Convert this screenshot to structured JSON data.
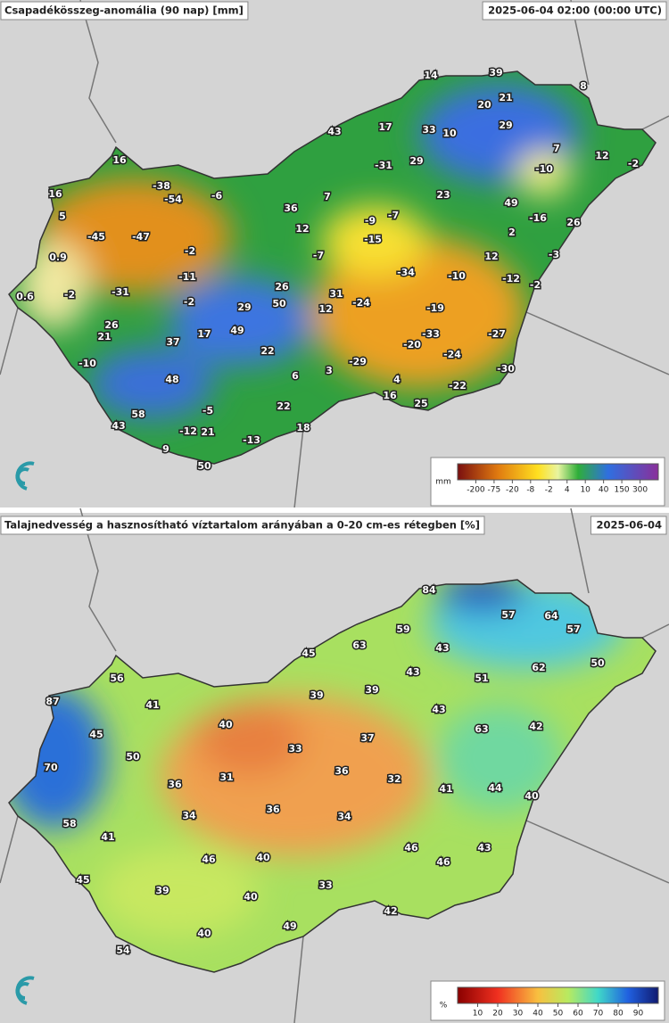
{
  "panels": [
    {
      "title": "Csapadékösszeg-anomália (90 nap) [mm]",
      "date": "2025-06-04 02:00 (00:00 UTC)",
      "values": [
        14,
        39,
        8,
        21,
        20,
        17,
        33,
        10,
        29,
        43,
        7,
        16,
        -31,
        29,
        12,
        -2,
        -10,
        -38,
        -54,
        -6,
        16,
        7,
        23,
        49,
        36,
        -7,
        -9,
        -16,
        26,
        5,
        12,
        2,
        -45,
        -47,
        -15,
        -2,
        0.9,
        -7,
        12,
        -3,
        -11,
        -34,
        -10,
        -12,
        -2,
        0.6,
        -2,
        -31,
        26,
        31,
        -2,
        50,
        12,
        -24,
        -19,
        29,
        26,
        49,
        17,
        -27,
        -33,
        -20,
        21,
        37,
        22,
        -24,
        -29,
        -30,
        -10,
        3,
        6,
        48,
        4,
        -22,
        16,
        22,
        25,
        -5,
        58,
        43,
        18,
        -12,
        21,
        -13,
        9,
        50
      ],
      "legend": {
        "unit": "mm",
        "ticks": [
          -200,
          -75,
          -20,
          -8,
          -2,
          4,
          10,
          40,
          150,
          300
        ]
      }
    },
    {
      "title": "Talajnedvesség a hasznosítható víztartalom arányában a 0-20 cm-es rétegben [%]",
      "date": "2025-06-04",
      "values": [
        84,
        57,
        64,
        59,
        57,
        63,
        45,
        43,
        56,
        62,
        50,
        39,
        39,
        43,
        51,
        87,
        41,
        43,
        40,
        45,
        63,
        42,
        33,
        37,
        50,
        70,
        36,
        31,
        32,
        36,
        41,
        44,
        40,
        36,
        34,
        34,
        58,
        41,
        46,
        43,
        46,
        40,
        46,
        45,
        39,
        33,
        40,
        42,
        49,
        40,
        54
      ],
      "legend": {
        "unit": "%",
        "ticks": [
          10,
          20,
          30,
          40,
          50,
          60,
          70,
          80,
          90
        ]
      }
    }
  ]
}
